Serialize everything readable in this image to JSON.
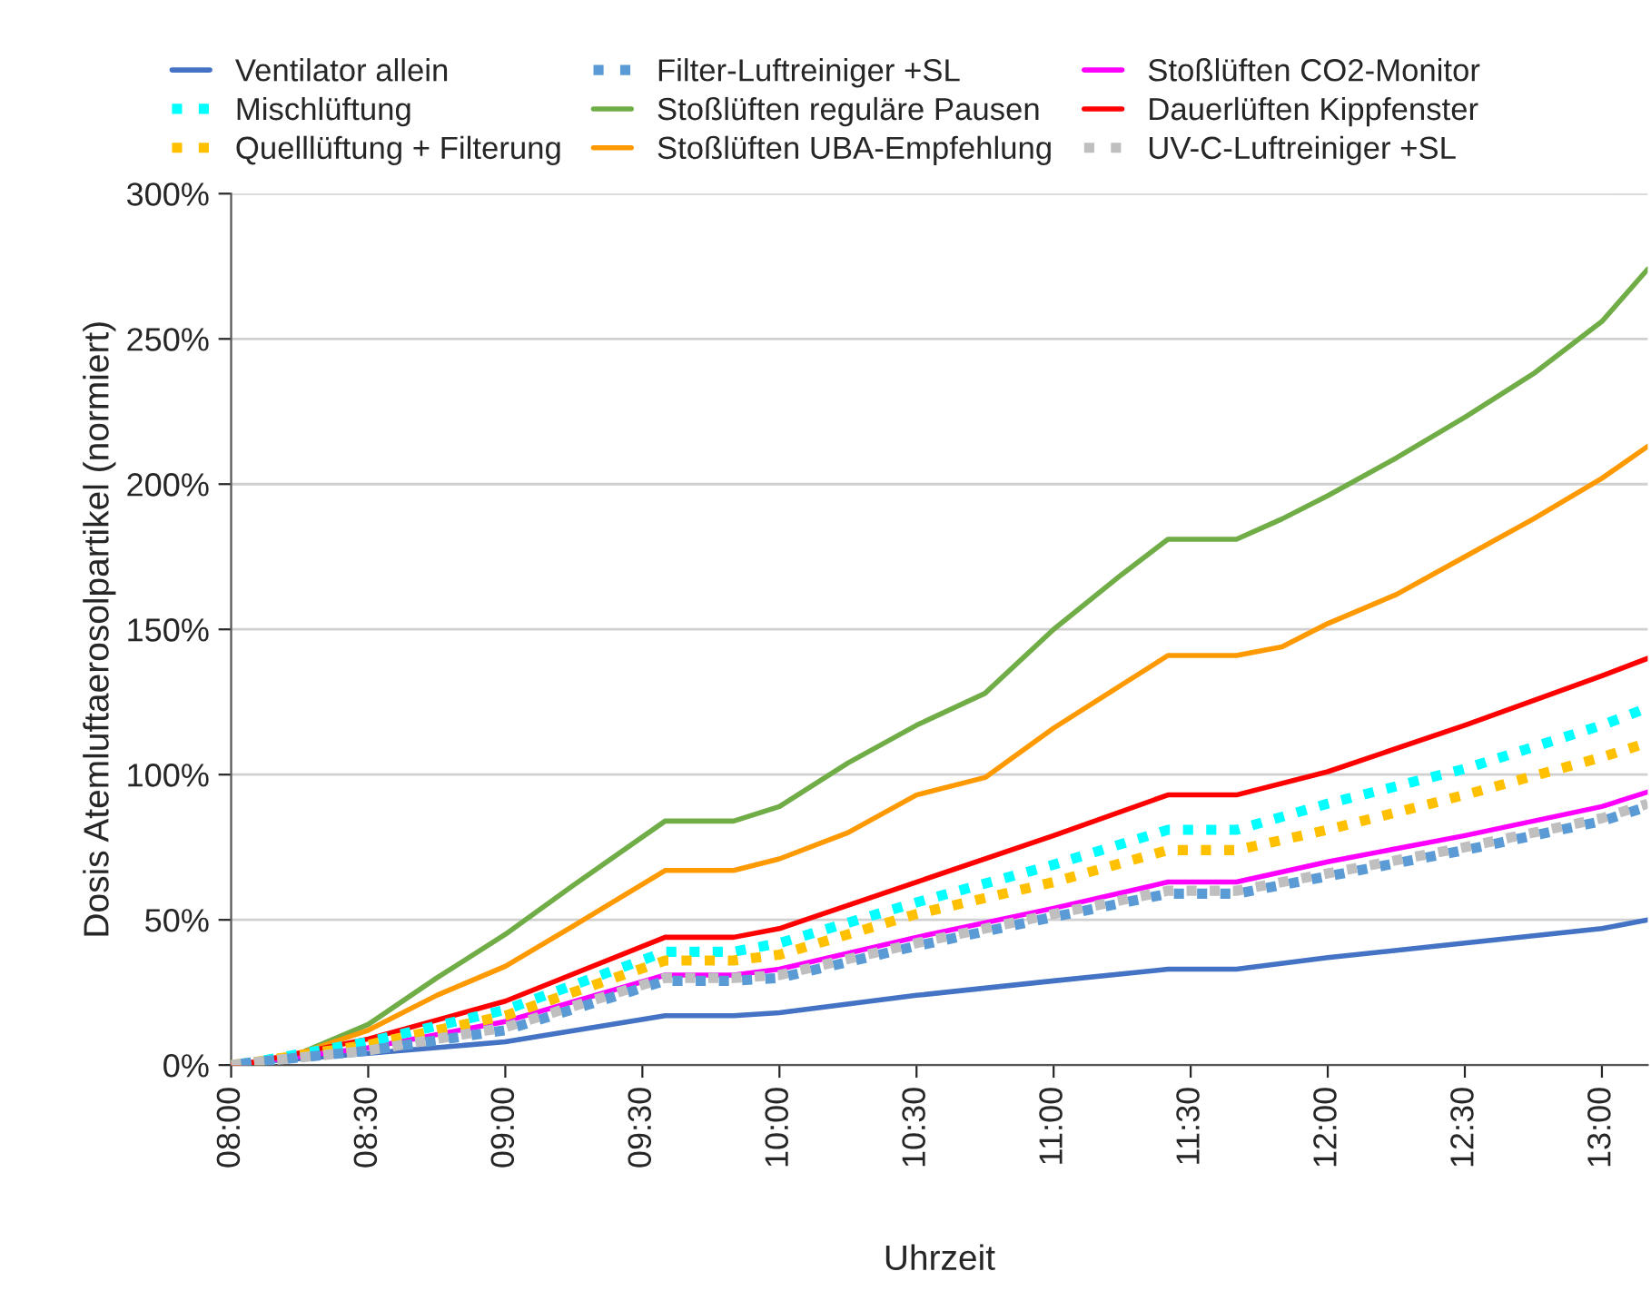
{
  "chart_data": {
    "type": "line",
    "xlabel": "Uhrzeit",
    "ylabel": "Dosis Atemluftaerosolpartikel (normiert)",
    "x": [
      8.0,
      8.083,
      8.5,
      9.0,
      9.583,
      9.833,
      10.0,
      10.5,
      11.0,
      11.417,
      11.667,
      12.0,
      12.5,
      13.0,
      13.167
    ],
    "xlim": [
      8.0,
      13.167
    ],
    "xticks": [
      {
        "value": 8.0,
        "label": "08:00"
      },
      {
        "value": 8.5,
        "label": "08:30"
      },
      {
        "value": 9.0,
        "label": "09:00"
      },
      {
        "value": 9.5,
        "label": "09:30"
      },
      {
        "value": 10.0,
        "label": "10:00"
      },
      {
        "value": 10.5,
        "label": "10:30"
      },
      {
        "value": 11.0,
        "label": "11:00"
      },
      {
        "value": 11.5,
        "label": "11:30"
      },
      {
        "value": 12.0,
        "label": "12:00"
      },
      {
        "value": 12.5,
        "label": "12:30"
      },
      {
        "value": 13.0,
        "label": "13:00"
      }
    ],
    "ylim": [
      0,
      300
    ],
    "yticks": [
      {
        "value": 0,
        "label": "0%"
      },
      {
        "value": 50,
        "label": "50%"
      },
      {
        "value": 100,
        "label": "100%"
      },
      {
        "value": 150,
        "label": "150%"
      },
      {
        "value": 200,
        "label": "200%"
      },
      {
        "value": 250,
        "label": "250%"
      },
      {
        "value": 300,
        "label": "300%"
      }
    ],
    "grid": "y",
    "legend": "top",
    "series": [
      {
        "name": "Ventilator allein",
        "color": "#4472c4",
        "line_style": "solid",
        "values": [
          0,
          1,
          4,
          8,
          17,
          17,
          18,
          24,
          29,
          33,
          33,
          37,
          42,
          47,
          50
        ]
      },
      {
        "name": "Mischlüftung",
        "color": "#00ffff",
        "line_style": "dotted",
        "values": [
          0,
          1,
          8,
          19,
          39,
          39,
          42,
          56,
          69,
          81,
          81,
          90,
          102,
          117,
          123
        ]
      },
      {
        "name": "Quelllüftung + Filterung",
        "color": "#ffc000",
        "line_style": "dotted",
        "values": [
          0,
          1,
          7,
          17,
          36,
          36,
          38,
          52,
          63,
          74,
          74,
          81,
          93,
          106,
          111
        ]
      },
      {
        "name": "Filter-Luftreiniger +SL",
        "color": "#5b9bd5",
        "line_style": "dotted",
        "values": [
          0,
          1,
          5,
          12,
          29,
          29,
          30,
          41,
          51,
          59,
          59,
          65,
          74,
          84,
          89
        ]
      },
      {
        "name": "Stoßlüften reguläre Pausen",
        "color": "#70ad47",
        "line_style": "solid",
        "x": [
          8.0,
          8.083,
          8.25,
          8.5,
          8.75,
          9.0,
          9.25,
          9.583,
          9.833,
          10.0,
          10.25,
          10.5,
          10.75,
          11.0,
          11.25,
          11.417,
          11.667,
          11.833,
          12.0,
          12.25,
          12.5,
          12.75,
          13.0,
          13.167
        ],
        "values": [
          0,
          1,
          4,
          14,
          30,
          45,
          62,
          84,
          84,
          89,
          104,
          117,
          128,
          150,
          169,
          181,
          181,
          188,
          196,
          209,
          223,
          238,
          256,
          274
        ]
      },
      {
        "name": "Stoßlüften UBA-Empfehlung",
        "color": "#ff9900",
        "line_style": "solid",
        "x": [
          8.0,
          8.083,
          8.25,
          8.5,
          8.75,
          9.0,
          9.25,
          9.583,
          9.833,
          10.0,
          10.25,
          10.5,
          10.75,
          11.0,
          11.25,
          11.417,
          11.667,
          11.833,
          12.0,
          12.25,
          12.5,
          12.75,
          13.0,
          13.167
        ],
        "values": [
          0,
          1,
          4,
          12,
          24,
          34,
          48,
          67,
          67,
          71,
          80,
          93,
          99,
          116,
          131,
          141,
          141,
          144,
          152,
          162,
          175,
          188,
          202,
          213
        ]
      },
      {
        "name": "Stoßlüften CO2-Monitor",
        "color": "#ff00ff",
        "line_style": "solid",
        "values": [
          0,
          1,
          6,
          15,
          31,
          31,
          33,
          44,
          54,
          63,
          63,
          70,
          79,
          89,
          94
        ]
      },
      {
        "name": "Dauerlüften Kippfenster",
        "color": "#ff0000",
        "line_style": "solid",
        "values": [
          0,
          1,
          9,
          22,
          44,
          44,
          47,
          63,
          79,
          93,
          93,
          101,
          117,
          134,
          140
        ]
      },
      {
        "name": "UV-C-Luftreiniger +SL",
        "color": "#bfbfbf",
        "line_style": "dotted",
        "values": [
          0,
          1,
          5,
          13,
          30,
          30,
          31,
          42,
          52,
          60,
          60,
          66,
          75,
          85,
          90
        ]
      }
    ]
  }
}
